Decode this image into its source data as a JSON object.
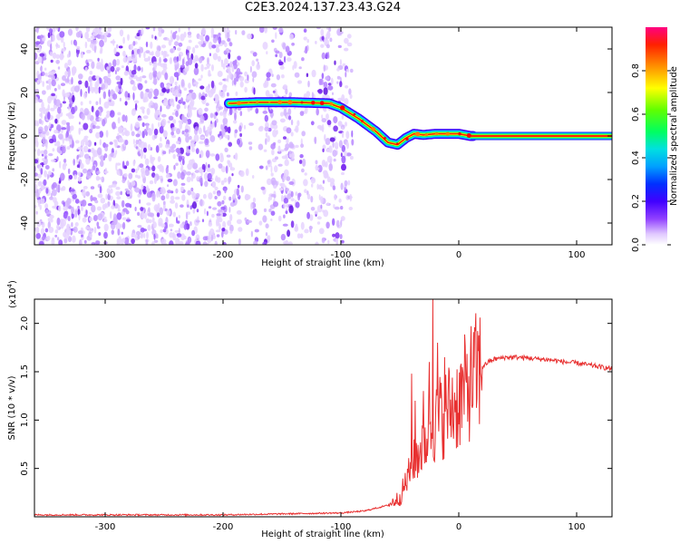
{
  "title": "C2E3.2024.137.23.43.G24",
  "chart_data": [
    {
      "type": "heatmap",
      "panel": "spectrogram",
      "xlabel": "Height of straight line (km)",
      "ylabel": "Frequency (Hz)",
      "xlim": [
        -360,
        130
      ],
      "ylim": [
        -50,
        50
      ],
      "xticks": [
        -300,
        -200,
        -100,
        0,
        100
      ],
      "yticks": [
        -40,
        -20,
        0,
        20,
        40
      ],
      "grid": false,
      "colorbar": {
        "label": "Normalized spectral amplitude",
        "range": [
          0,
          1
        ],
        "ticks": [
          "0.0",
          "0.2",
          "0.4",
          "0.6",
          "0.8"
        ],
        "colors": [
          "#ffffff",
          "#c080ff",
          "#7000e0",
          "#0000ff",
          "#00d0ff",
          "#00ff40",
          "#ffff00",
          "#ff8000",
          "#ff0000",
          "#ff0080"
        ]
      },
      "ridge": {
        "x": [
          -195,
          -170,
          -140,
          -110,
          -100,
          -85,
          -70,
          -60,
          -52,
          -45,
          -38,
          -30,
          -20,
          -10,
          0,
          10,
          130
        ],
        "freq": [
          15,
          15.5,
          15.5,
          15,
          13,
          8,
          2,
          -3,
          -4,
          -1,
          1,
          0.5,
          1,
          1,
          1,
          0,
          0
        ],
        "peak_amplitude": 1.0
      },
      "noise_region": {
        "x": [
          -360,
          -90
        ],
        "freq": [
          -50,
          50
        ]
      }
    },
    {
      "type": "line",
      "panel": "snr",
      "xlabel": "Height of straight line (km)",
      "ylabel": "SNR (10 * v/v)",
      "y_multiplier": "(x10^4)",
      "xlim": [
        -360,
        130
      ],
      "ylim": [
        0,
        2.25
      ],
      "xticks": [
        -300,
        -200,
        -100,
        0,
        100
      ],
      "yticks": [
        0.5,
        1.0,
        1.5,
        2.0
      ],
      "grid": false,
      "color": "#e83030",
      "series": [
        {
          "x": [
            -360,
            -300,
            -250,
            -200,
            -150,
            -100,
            -80,
            -60,
            -50,
            -45,
            -40,
            -35,
            -30,
            -25,
            -20,
            -15,
            -10,
            -5,
            0,
            5,
            10,
            15,
            20,
            25,
            30,
            40,
            50,
            60,
            70,
            80,
            90,
            100,
            110,
            120,
            130
          ],
          "values": [
            0.02,
            0.02,
            0.02,
            0.02,
            0.03,
            0.04,
            0.06,
            0.12,
            0.2,
            0.35,
            0.5,
            0.65,
            0.75,
            0.9,
            0.95,
            1.05,
            1.1,
            1.15,
            1.2,
            1.3,
            1.4,
            1.48,
            1.55,
            1.6,
            1.63,
            1.65,
            1.65,
            1.64,
            1.63,
            1.62,
            1.6,
            1.59,
            1.57,
            1.55,
            1.53
          ]
        }
      ],
      "spikes": [
        {
          "x": -40,
          "value": 1.48
        },
        {
          "x": -37,
          "value": 1.2
        },
        {
          "x": -30,
          "value": 1.3
        },
        {
          "x": -25,
          "value": 1.6
        },
        {
          "x": -22,
          "value": 2.25
        },
        {
          "x": -18,
          "value": 1.8
        },
        {
          "x": -12,
          "value": 1.65
        },
        {
          "x": -8,
          "value": 1.5
        }
      ]
    }
  ],
  "colorbar_tick_labels": [
    "0.0",
    "0.2",
    "0.4",
    "0.6",
    "0.8"
  ],
  "colorbar_label": "Normalized spectral amplitude",
  "top_xlabel": "Height of straight line (km)",
  "top_ylabel": "Frequency (Hz)",
  "bottom_xlabel": "Height of straight line (km)",
  "bottom_ylabel": "SNR (10 * v/v)",
  "bottom_multiplier_base": "(x10",
  "bottom_multiplier_exp": "4",
  "bottom_multiplier_close": ")"
}
